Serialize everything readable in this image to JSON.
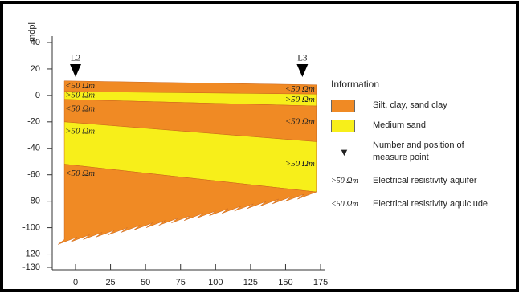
{
  "chart_data": {
    "type": "cross-section",
    "y_label": "mdpl",
    "ylim": [
      -130,
      40
    ],
    "yticks": [
      40,
      20,
      0,
      -20,
      -40,
      -60,
      -80,
      -100,
      -120,
      -130
    ],
    "xlim": [
      -15,
      185
    ],
    "xticks": [
      0,
      25,
      50,
      75,
      100,
      125,
      150,
      175
    ],
    "layers": [
      {
        "color": "#f08a24",
        "x": [
          -8,
          172
        ],
        "top": [
          11,
          8
        ],
        "bottom": [
          3,
          1
        ],
        "labels": [
          "<50 Ωm",
          "<50 Ωm"
        ]
      },
      {
        "color": "#f7ef1a",
        "x": [
          -8,
          172
        ],
        "top": [
          3,
          1
        ],
        "bottom": [
          -3,
          -8
        ],
        "labels": [
          ">50 Ωm",
          ">50 Ωm"
        ]
      },
      {
        "color": "#f08a24",
        "x": [
          -8,
          172
        ],
        "top": [
          -3,
          -8
        ],
        "bottom": [
          -20,
          -35
        ],
        "labels": [
          "<50 Ωm",
          "<50 Ωm"
        ]
      },
      {
        "color": "#f7ef1a",
        "x": [
          -8,
          172
        ],
        "top": [
          -20,
          -35
        ],
        "bottom": [
          -52,
          -73
        ],
        "labels": [
          ">50 Ωm",
          ">50 Ωm"
        ]
      },
      {
        "color": "#f08a24",
        "x": [
          -8,
          172
        ],
        "top": [
          -52,
          -73
        ],
        "bottom": [
          -109,
          -73
        ],
        "labels": [
          "<50 Ωm"
        ]
      }
    ],
    "measure_points": [
      {
        "label": "L2",
        "x": 0
      },
      {
        "label": "L3",
        "x": 162
      }
    ],
    "legend": {
      "title": "Information",
      "items": [
        {
          "symbol": "#f08a24",
          "label": "Silt, clay, sand clay"
        },
        {
          "symbol": "#f7ef1a",
          "label": "Medium sand"
        },
        {
          "symbol": "▼",
          "label": "Number and position of measure point"
        },
        {
          "symbol": ">50 Ωm",
          "label": "Electrical resistivity aquifer"
        },
        {
          "symbol": "<50 Ωm",
          "label": "Electrical resistivity aquiclude"
        }
      ]
    }
  }
}
